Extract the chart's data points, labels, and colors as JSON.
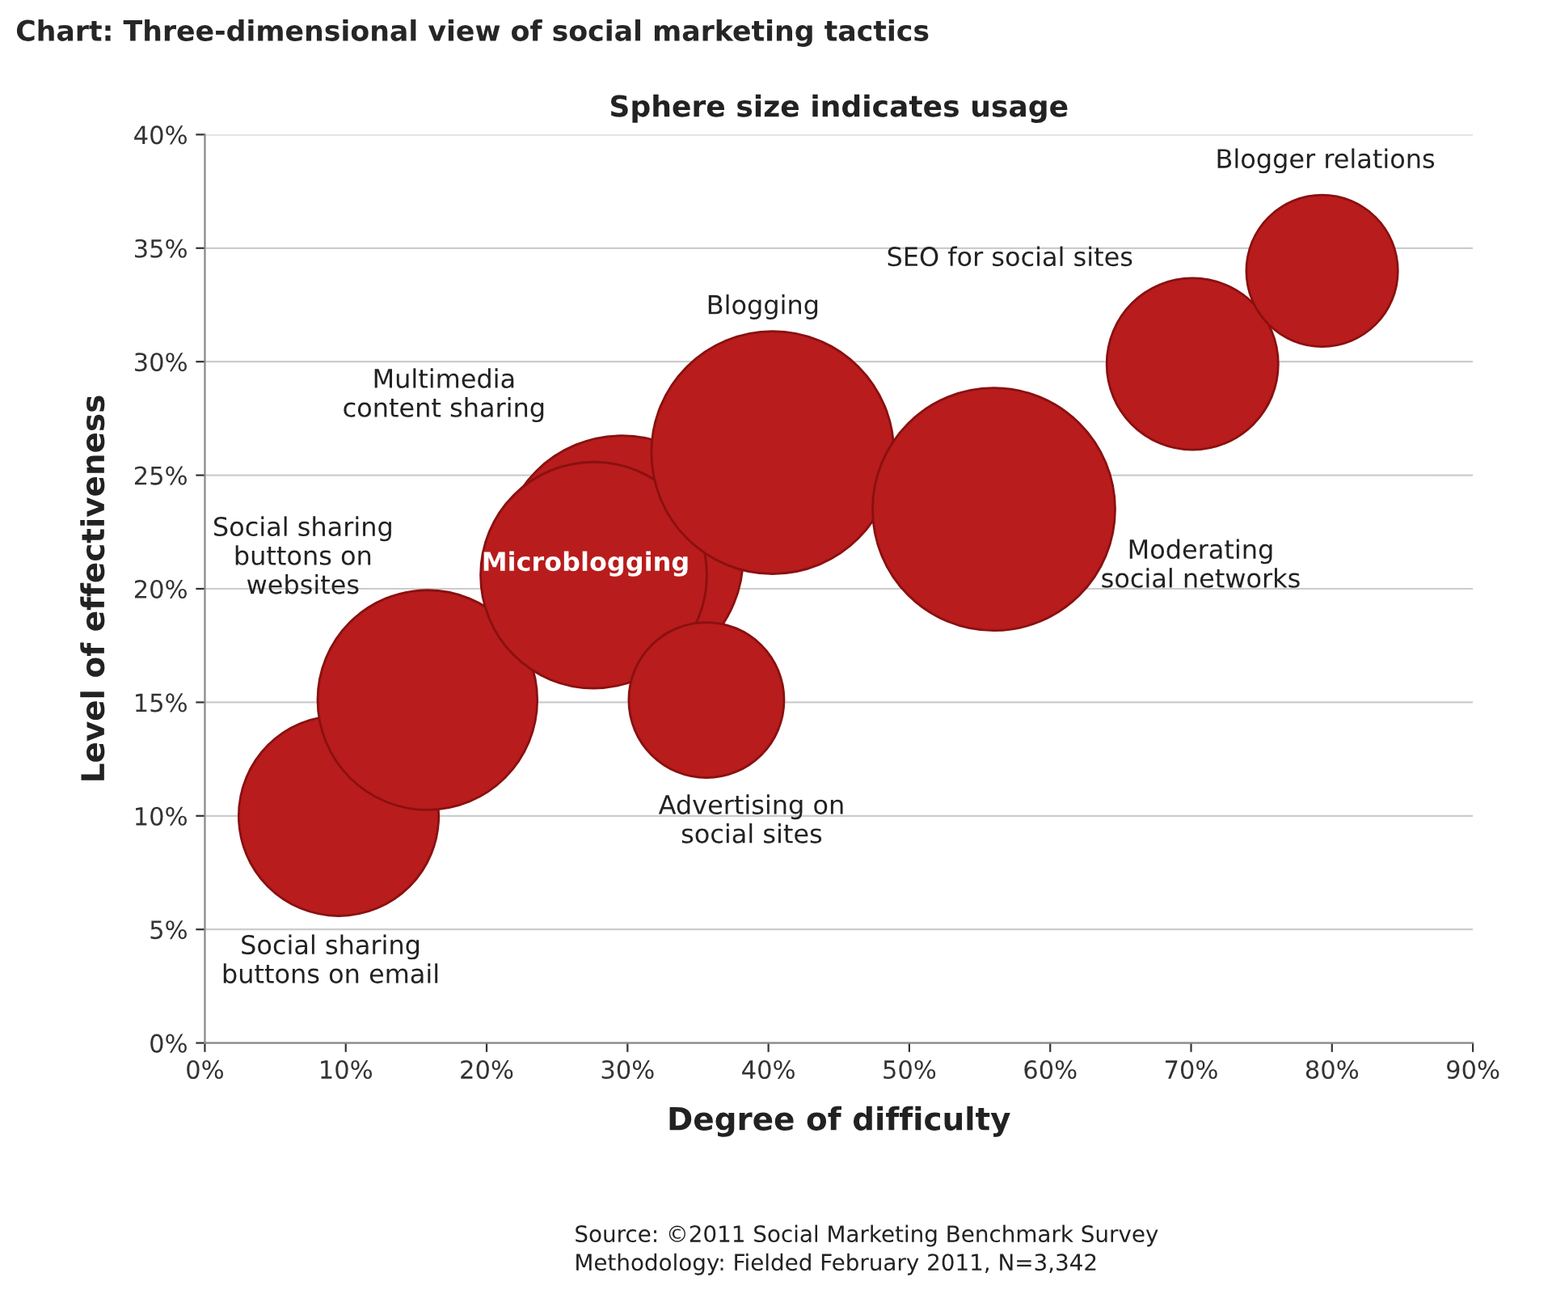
{
  "chart_data": {
    "type": "bubble",
    "title": "Chart: Three-dimensional view of social marketing tactics",
    "subtitle": "Sphere size indicates usage",
    "xlabel": "Degree of difficulty",
    "ylabel": "Level of effectiveness",
    "series": [
      {
        "name": "Social sharing\nbuttons on email",
        "color": "#b81c1c",
        "x": [
          9.5
        ],
        "values": [
          10
        ],
        "sizes": [
          0.68
        ]
      },
      {
        "name": "Social sharing\nbuttons on\nwebsites",
        "color": "#b81c1c",
        "x": [
          15.8
        ],
        "values": [
          15.1
        ],
        "sizes": [
          0.82
        ]
      },
      {
        "name": "Multimedia\ncontent sharing",
        "color": "#b81c1c",
        "x": [
          29.6
        ],
        "values": [
          21.4
        ],
        "sizes": [
          1
        ]
      },
      {
        "name": "Microblogging",
        "color": "#b81c1c",
        "x": [
          27.6
        ],
        "values": [
          20.6
        ],
        "sizes": [
          0.87
        ]
      },
      {
        "name": "Blogging",
        "color": "#b81c1c",
        "x": [
          40.3
        ],
        "values": [
          26
        ],
        "sizes": [
          1
        ]
      },
      {
        "name": "Advertising on\nsocial sites",
        "color": "#b81c1c",
        "x": [
          35.6
        ],
        "values": [
          15.1
        ],
        "sizes": [
          0.41
        ]
      },
      {
        "name": "Moderating\nsocial networks",
        "color": "#b81c1c",
        "x": [
          56
        ],
        "values": [
          23.5
        ],
        "sizes": [
          1
        ]
      },
      {
        "name": "SEO for social sites",
        "color": "#b81c1c",
        "x": [
          70.1
        ],
        "values": [
          29.9
        ],
        "sizes": [
          0.5
        ]
      },
      {
        "name": "Blogger relations",
        "color": "#b81c1c",
        "x": [
          79.3
        ],
        "values": [
          34
        ],
        "sizes": [
          0.39
        ]
      }
    ],
    "xlim": [
      0,
      90
    ],
    "ylim": [
      0,
      40
    ],
    "xticks": [
      {
        "value": 0,
        "label": "0%"
      },
      {
        "value": 10,
        "label": "10%"
      },
      {
        "value": 20,
        "label": "20%"
      },
      {
        "value": 30,
        "label": "30%"
      },
      {
        "value": 40,
        "label": "40%"
      },
      {
        "value": 50,
        "label": "50%"
      },
      {
        "value": 60,
        "label": "60%"
      },
      {
        "value": 70,
        "label": "70%"
      },
      {
        "value": 80,
        "label": "80%"
      },
      {
        "value": 90,
        "label": "90%"
      }
    ],
    "yticks": [
      {
        "value": 0,
        "label": "0%"
      },
      {
        "value": 5,
        "label": "5%"
      },
      {
        "value": 10,
        "label": "10%"
      },
      {
        "value": 15,
        "label": "15%"
      },
      {
        "value": 20,
        "label": "20%"
      },
      {
        "value": 25,
        "label": "25%"
      },
      {
        "value": 30,
        "label": "30%"
      },
      {
        "value": 35,
        "label": "35%"
      },
      {
        "value": 40,
        "label": "40%"
      }
    ],
    "grid": "y",
    "annotations": [
      "Source: ©2011 Social Marketing Benchmark Survey",
      "Methodology: Fielded February 2011, N=3,342"
    ]
  }
}
